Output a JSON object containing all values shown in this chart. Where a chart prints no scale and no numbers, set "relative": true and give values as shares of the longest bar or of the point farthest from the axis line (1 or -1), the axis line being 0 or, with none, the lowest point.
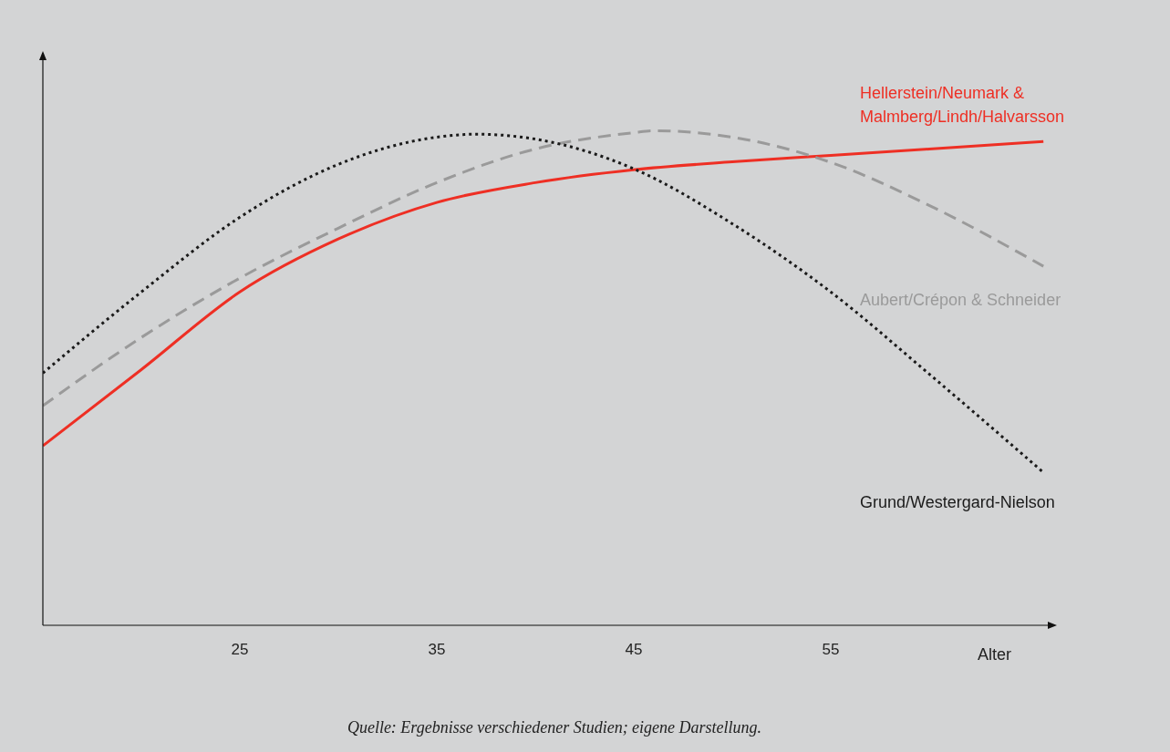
{
  "chart_data": {
    "type": "line",
    "relative": true,
    "xlabel": "Alter",
    "xlim": [
      15,
      66.3
    ],
    "xticks": [
      25,
      35,
      45,
      55
    ],
    "grid": false,
    "legend": false,
    "marker": "none",
    "annotations": [
      "Quelle: Ergebnisse verschiedener Studien;  eigene Darstellung."
    ],
    "series": [
      {
        "name": "Hellerstein/Neumark & Malmberg/Lindh/Halvarsson",
        "color": "#ee2f24",
        "line_style": "solid",
        "x": [
          15,
          20,
          25,
          30,
          35,
          40,
          45,
          50,
          55,
          60,
          65.8
        ],
        "values": [
          0.363,
          0.517,
          0.674,
          0.781,
          0.855,
          0.895,
          0.921,
          0.937,
          0.95,
          0.963,
          0.978
        ]
      },
      {
        "name": "Aubert/Crépon & Schneider",
        "color": "#9a9a9a",
        "line_style": "dashed",
        "x": [
          15,
          20,
          25,
          30,
          35,
          40,
          45,
          46,
          50,
          55,
          60,
          65.8
        ],
        "values": [
          0.444,
          0.582,
          0.702,
          0.803,
          0.895,
          0.963,
          0.996,
          1,
          0.987,
          0.936,
          0.849,
          0.726
        ]
      },
      {
        "name": "Grund/Westergard-Nielson",
        "color": "#1a1a1a",
        "line_style": "dotted",
        "x": [
          15,
          20,
          25,
          30,
          35,
          37,
          40,
          45,
          50,
          55,
          60,
          65.8
        ],
        "values": [
          0.51,
          0.674,
          0.825,
          0.932,
          0.987,
          0.993,
          0.983,
          0.923,
          0.812,
          0.674,
          0.508,
          0.309
        ]
      }
    ]
  }
}
